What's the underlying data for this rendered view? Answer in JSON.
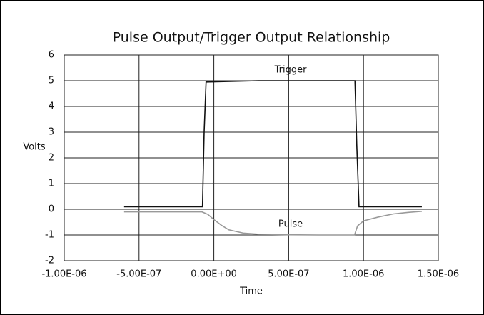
{
  "chart_data": {
    "type": "line",
    "title": "Pulse Output/Trigger Output Relationship",
    "x_label": "Time",
    "y_label": "Volts",
    "xlim": [
      -1e-06,
      1.5e-06
    ],
    "xticks": [
      {
        "value": -1e-06,
        "label": "-1.00E-06"
      },
      {
        "value": -5e-07,
        "label": "-5.00E-07"
      },
      {
        "value": 0,
        "label": "0.00E+00"
      },
      {
        "value": 5e-07,
        "label": "5.00E-07"
      },
      {
        "value": 1e-06,
        "label": "1.00E-06"
      },
      {
        "value": 1.5e-06,
        "label": "1.50E-06"
      }
    ],
    "ylim": [
      -2,
      6
    ],
    "yticks": [
      -2,
      -1,
      0,
      1,
      2,
      3,
      4,
      5,
      6
    ],
    "grid": true,
    "series": [
      {
        "name": "Trigger",
        "color": "#111111",
        "x": [
          -6e-07,
          -7.6e-08,
          -6.5e-08,
          -5.2e-08,
          3e-07,
          6e-07,
          9.43e-07,
          9.55e-07,
          9.7e-07,
          1.2e-06,
          1.39e-06
        ],
        "values": [
          0.1,
          0.1,
          3.0,
          4.95,
          5.0,
          5.0,
          5.0,
          2.5,
          0.1,
          0.1,
          0.1
        ]
      },
      {
        "name": "Pulse",
        "color": "#999999",
        "x": [
          -6e-07,
          -8e-08,
          -4e-08,
          0,
          5e-08,
          1e-07,
          2e-07,
          3e-07,
          5e-07,
          7e-07,
          9.4e-07,
          9.6e-07,
          1e-06,
          1.1e-06,
          1.2e-06,
          1.3e-06,
          1.39e-06
        ],
        "values": [
          -0.1,
          -0.1,
          -0.2,
          -0.4,
          -0.62,
          -0.8,
          -0.93,
          -0.97,
          -0.99,
          -1.0,
          -1.0,
          -0.65,
          -0.45,
          -0.3,
          -0.18,
          -0.12,
          -0.08
        ]
      }
    ]
  }
}
